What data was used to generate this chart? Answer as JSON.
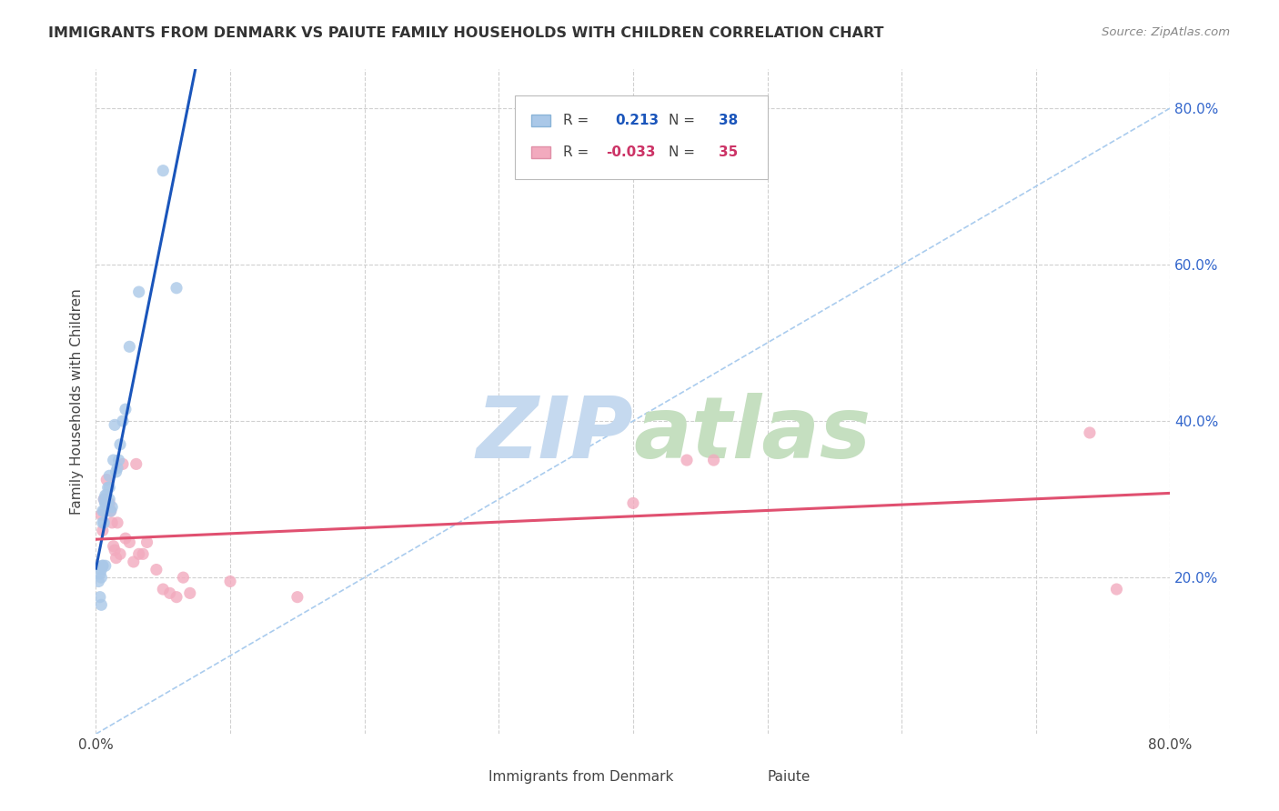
{
  "title": "IMMIGRANTS FROM DENMARK VS PAIUTE FAMILY HOUSEHOLDS WITH CHILDREN CORRELATION CHART",
  "source": "Source: ZipAtlas.com",
  "ylabel": "Family Households with Children",
  "xlim": [
    0.0,
    0.8
  ],
  "ylim": [
    0.0,
    0.85
  ],
  "grid_color": "#d0d0d0",
  "background_color": "#ffffff",
  "blue_R": "0.213",
  "blue_N": "38",
  "pink_R": "-0.033",
  "pink_N": "35",
  "blue_color": "#aac8e8",
  "pink_color": "#f2aabe",
  "blue_line_color": "#1a55bb",
  "pink_line_color": "#e05070",
  "dashed_line_color": "#aaccee",
  "blue_x": [
    0.002,
    0.003,
    0.003,
    0.004,
    0.004,
    0.004,
    0.005,
    0.005,
    0.005,
    0.005,
    0.006,
    0.006,
    0.006,
    0.007,
    0.007,
    0.007,
    0.007,
    0.008,
    0.008,
    0.009,
    0.009,
    0.01,
    0.01,
    0.01,
    0.011,
    0.012,
    0.013,
    0.014,
    0.015,
    0.016,
    0.017,
    0.018,
    0.02,
    0.022,
    0.025,
    0.032,
    0.05,
    0.06
  ],
  "blue_y": [
    0.195,
    0.175,
    0.205,
    0.21,
    0.2,
    0.165,
    0.27,
    0.285,
    0.215,
    0.215,
    0.27,
    0.285,
    0.3,
    0.295,
    0.305,
    0.295,
    0.215,
    0.295,
    0.305,
    0.315,
    0.295,
    0.3,
    0.315,
    0.33,
    0.285,
    0.29,
    0.35,
    0.395,
    0.335,
    0.34,
    0.35,
    0.37,
    0.4,
    0.415,
    0.495,
    0.565,
    0.72,
    0.57
  ],
  "pink_x": [
    0.004,
    0.005,
    0.006,
    0.007,
    0.008,
    0.009,
    0.01,
    0.011,
    0.012,
    0.013,
    0.014,
    0.015,
    0.016,
    0.018,
    0.02,
    0.022,
    0.025,
    0.028,
    0.03,
    0.032,
    0.035,
    0.038,
    0.045,
    0.05,
    0.055,
    0.06,
    0.065,
    0.07,
    0.1,
    0.15,
    0.4,
    0.44,
    0.46,
    0.74,
    0.76
  ],
  "pink_y": [
    0.28,
    0.26,
    0.3,
    0.3,
    0.325,
    0.295,
    0.295,
    0.285,
    0.27,
    0.24,
    0.235,
    0.225,
    0.27,
    0.23,
    0.345,
    0.25,
    0.245,
    0.22,
    0.345,
    0.23,
    0.23,
    0.245,
    0.21,
    0.185,
    0.18,
    0.175,
    0.2,
    0.18,
    0.195,
    0.175,
    0.295,
    0.35,
    0.35,
    0.385,
    0.185
  ],
  "zipatlas_zip": "ZIP",
  "zipatlas_atlas": "atlas",
  "zipatlas_color_zip": "#c5d9ef",
  "zipatlas_color_atlas": "#c5dfc0",
  "zipatlas_fontsize": 68
}
